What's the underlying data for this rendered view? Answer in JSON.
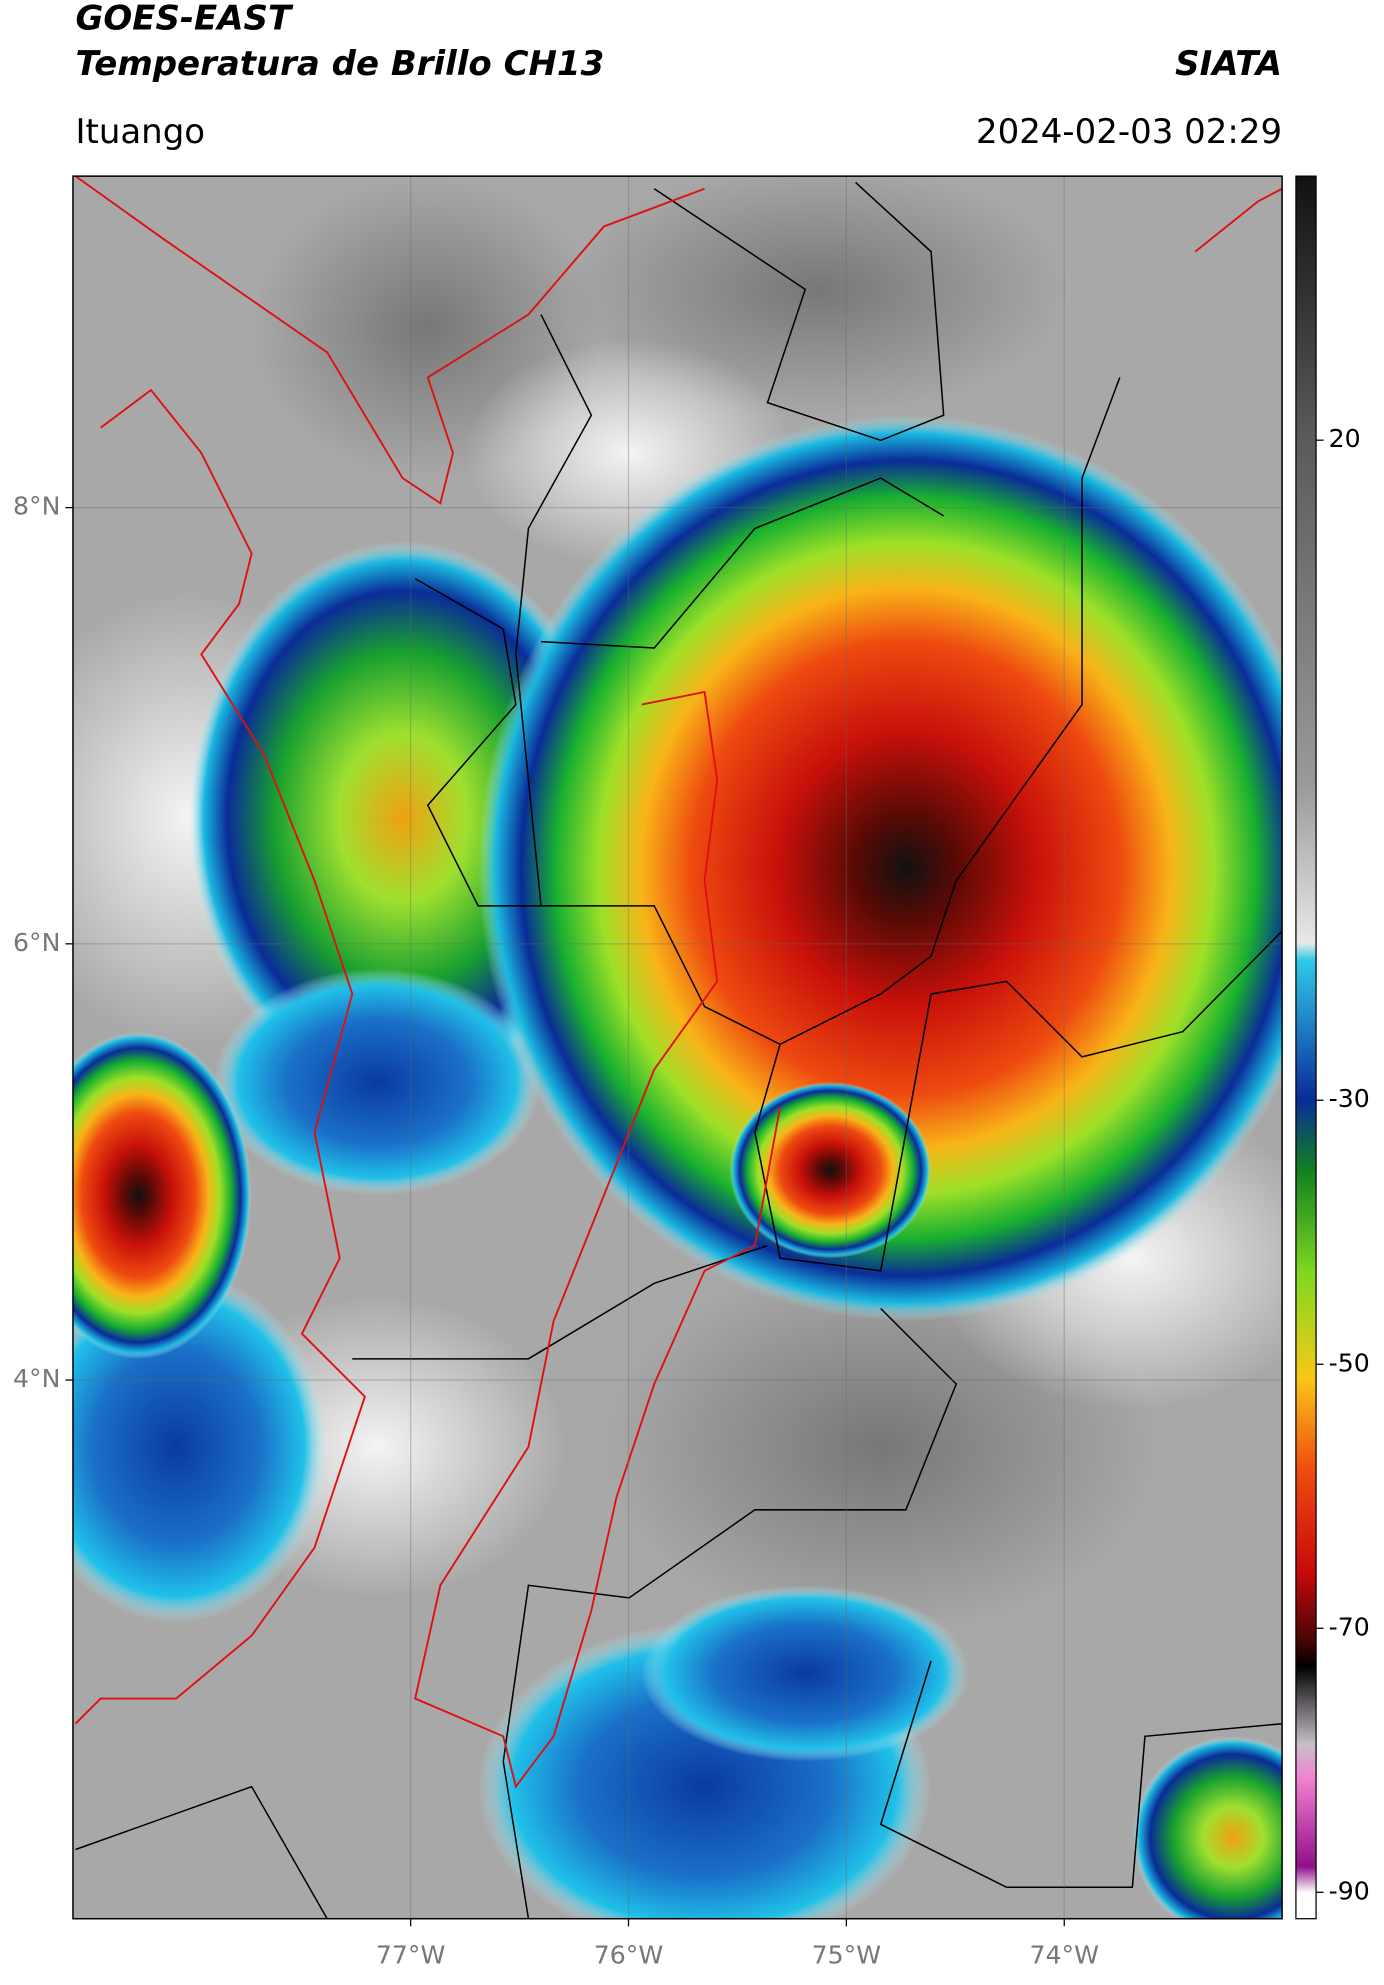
{
  "header": {
    "title": "GOES-EAST",
    "subtitle": "Temperatura de Brillo CH13",
    "source": "SIATA",
    "location": "Ituango",
    "datetime": "2024-02-03 02:29"
  },
  "map": {
    "lon_range": [
      -78.55,
      -73.0
    ],
    "lat_range": [
      1.53,
      9.52
    ],
    "lon_ticks": [
      {
        "value": -77,
        "label": "77°W"
      },
      {
        "value": -76,
        "label": "76°W"
      },
      {
        "value": -75,
        "label": "75°W"
      },
      {
        "value": -74,
        "label": "74°W"
      }
    ],
    "lat_ticks": [
      {
        "value": 8,
        "label": "8°N"
      },
      {
        "value": 6,
        "label": "6°N"
      },
      {
        "value": 4,
        "label": "4°N"
      }
    ]
  },
  "colorbar": {
    "range": [
      -92,
      40
    ],
    "ticks": [
      20,
      -30,
      -50,
      -70,
      -90
    ]
  }
}
